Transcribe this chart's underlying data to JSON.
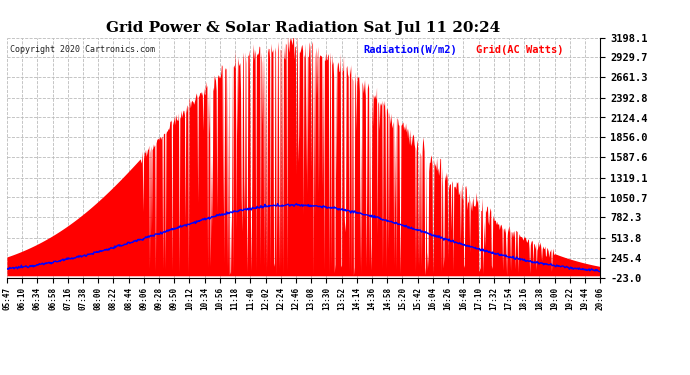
{
  "title": "Grid Power & Solar Radiation Sat Jul 11 20:24",
  "copyright": "Copyright 2020 Cartronics.com",
  "legend_radiation": "Radiation(W/m2)",
  "legend_grid": "Grid(AC Watts)",
  "yticks": [
    -23.0,
    245.4,
    513.8,
    782.3,
    1050.7,
    1319.1,
    1587.6,
    1856.0,
    2124.4,
    2392.8,
    2661.3,
    2929.7,
    3198.1
  ],
  "ymin": -23.0,
  "ymax": 3198.1,
  "xtick_labels": [
    "05:47",
    "06:10",
    "06:34",
    "06:58",
    "07:16",
    "07:38",
    "08:00",
    "08:22",
    "08:44",
    "09:06",
    "09:28",
    "09:50",
    "10:12",
    "10:34",
    "10:56",
    "11:18",
    "11:40",
    "12:02",
    "12:24",
    "12:46",
    "13:08",
    "13:30",
    "13:52",
    "14:14",
    "14:36",
    "14:58",
    "15:20",
    "15:42",
    "16:04",
    "16:26",
    "16:48",
    "17:10",
    "17:32",
    "17:54",
    "18:16",
    "18:38",
    "19:00",
    "19:22",
    "19:44",
    "20:06"
  ],
  "background_color": "#ffffff",
  "grid_color": "#bbbbbb",
  "fill_color": "#ff0000",
  "line_color": "#0000ff",
  "title_color": "#000000",
  "radiation_color": "#0000ff",
  "grid_ac_color": "#ff0000"
}
